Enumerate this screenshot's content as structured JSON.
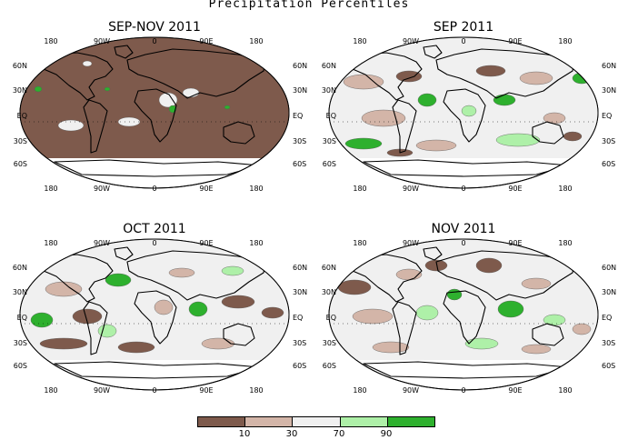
{
  "title": "Precipitation Percentiles",
  "colors": {
    "very_dry": "#7e5a4c",
    "dry": "#d3b5a8",
    "normal": "#f0f0f0",
    "wet": "#aef0a8",
    "very_wet": "#2eb02e",
    "ocean_frame": "#ffffff",
    "coast": "#000000"
  },
  "panels": [
    {
      "title": "SEP-NOV 2011",
      "lon_labels": [
        "180",
        "90W",
        "0",
        "90E",
        "180"
      ],
      "lat_labels_left": [
        "60N",
        "30N",
        "EQ",
        "30S",
        "60S"
      ],
      "lat_labels_right": [
        "60N",
        "30N",
        "EQ",
        "30S",
        "60S"
      ],
      "dominant_category": "very_dry"
    },
    {
      "title": "SEP  2011",
      "lon_labels": [
        "180",
        "90W",
        "0",
        "90E",
        "180"
      ],
      "lat_labels_left": [
        "60N",
        "30N",
        "EQ",
        "30S",
        "60S"
      ],
      "lat_labels_right": [
        "60N",
        "30N",
        "EQ",
        "30S",
        "60S"
      ],
      "dominant_category": "normal"
    },
    {
      "title": "OCT  2011",
      "lon_labels": [
        "180",
        "90W",
        "0",
        "90E",
        "180"
      ],
      "lat_labels_left": [
        "60N",
        "30N",
        "EQ",
        "30S",
        "60S"
      ],
      "lat_labels_right": [
        "60N",
        "30N",
        "EQ",
        "30S",
        "60S"
      ],
      "dominant_category": "normal"
    },
    {
      "title": "NOV  2011",
      "lon_labels": [
        "180",
        "90W",
        "0",
        "90E",
        "180"
      ],
      "lat_labels_left": [
        "60N",
        "30N",
        "EQ",
        "30S",
        "60S"
      ],
      "lat_labels_right": [
        "60N",
        "30N",
        "EQ",
        "30S",
        "60S"
      ],
      "dominant_category": "normal"
    }
  ],
  "legend": {
    "categories": [
      "very_dry",
      "dry",
      "normal",
      "wet",
      "very_wet"
    ],
    "labels": [
      "10",
      "30",
      "70",
      "90"
    ]
  }
}
